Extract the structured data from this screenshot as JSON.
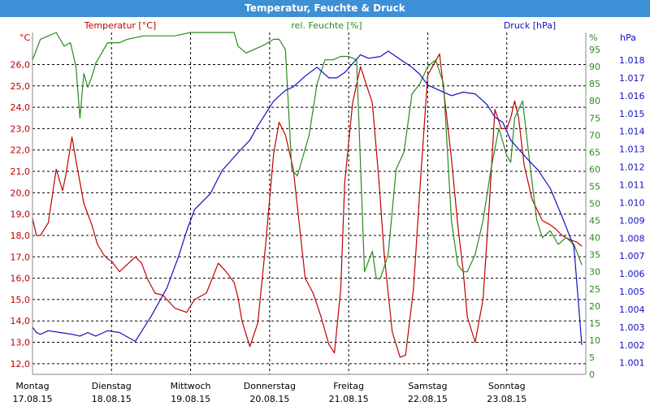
{
  "title": "Temperatur, Feuchte & Druck",
  "colors": {
    "temperature": "#c00000",
    "humidity": "#2a8a1e",
    "pressure": "#1010c0",
    "grid": "#000000",
    "title_bg": "#3d8fd6"
  },
  "chart_data": {
    "type": "line",
    "grid": true,
    "axes": {
      "left": {
        "title": "Temperatur [°C]",
        "unit": "°C",
        "ylim": [
          11.5,
          27.5
        ],
        "ticks": [
          "12,0",
          "13,0",
          "14,0",
          "15,0",
          "16,0",
          "17,0",
          "18,0",
          "19,0",
          "20,0",
          "21,0",
          "22,0",
          "23,0",
          "24,0",
          "25,0",
          "26,0"
        ]
      },
      "right1": {
        "title": "rel. Feuchte [%]",
        "unit": "%",
        "ylim": [
          0,
          100
        ],
        "ticks": [
          "0",
          "5",
          "10",
          "15",
          "20",
          "25",
          "30",
          "35",
          "40",
          "45",
          "50",
          "55",
          "60",
          "65",
          "70",
          "75",
          "80",
          "85",
          "90",
          "95"
        ]
      },
      "right2": {
        "title": "Druck [hPa]",
        "unit": "hPa",
        "ylim": [
          1000.35,
          1019.55
        ],
        "ticks": [
          "1.001",
          "1.002",
          "1.003",
          "1.004",
          "1.005",
          "1.006",
          "1.007",
          "1.008",
          "1.009",
          "1.010",
          "1.011",
          "1.012",
          "1.013",
          "1.014",
          "1.015",
          "1.016",
          "1.017",
          "1.018"
        ]
      }
    },
    "x_categories": [
      {
        "day": "Montag",
        "date": "17.08.15"
      },
      {
        "day": "Dienstag",
        "date": "18.08.15"
      },
      {
        "day": "Mittwoch",
        "date": "19.08.15"
      },
      {
        "day": "Donnerstag",
        "date": "20.08.15"
      },
      {
        "day": "Freitag",
        "date": "21.08.15"
      },
      {
        "day": "Samstag",
        "date": "22.08.15"
      },
      {
        "day": "Sonntag",
        "date": "23.08.15"
      }
    ],
    "series": [
      {
        "name": "Temperatur [°C]",
        "axis": "left",
        "x": [
          0,
          0.05,
          0.1,
          0.15,
          0.2,
          0.3,
          0.38,
          0.42,
          0.5,
          0.55,
          0.65,
          0.75,
          0.82,
          0.9,
          0.95,
          1.0,
          1.1,
          1.3,
          1.38,
          1.45,
          1.55,
          1.65,
          1.8,
          1.95,
          2.05,
          2.2,
          2.35,
          2.45,
          2.55,
          2.6,
          2.65,
          2.75,
          2.85,
          2.95,
          3.05,
          3.12,
          3.2,
          3.3,
          3.45,
          3.55,
          3.65,
          3.75,
          3.82,
          3.9,
          3.95,
          4.05,
          4.15,
          4.3,
          4.38,
          4.45,
          4.55,
          4.65,
          4.72,
          4.82,
          4.9,
          5.0,
          5.15,
          5.3,
          5.38,
          5.45,
          5.5,
          5.6,
          5.7,
          5.78,
          5.85,
          5.93,
          6.0,
          6.05,
          6.1,
          6.15,
          6.22,
          6.32,
          6.45,
          6.55,
          6.62,
          6.7,
          6.8,
          6.88,
          6.95
        ],
        "values": [
          18.8,
          18.0,
          18.0,
          18.3,
          18.6,
          21.1,
          20.1,
          20.8,
          22.6,
          21.5,
          19.5,
          18.5,
          17.6,
          17.1,
          16.9,
          16.8,
          16.3,
          17.0,
          16.7,
          16.0,
          15.3,
          15.2,
          14.6,
          14.4,
          15.0,
          15.3,
          16.7,
          16.3,
          15.8,
          15.1,
          14.0,
          12.8,
          13.9,
          17.6,
          21.8,
          23.3,
          22.7,
          21.1,
          16.0,
          15.3,
          14.2,
          12.9,
          12.5,
          15.5,
          20.5,
          24.2,
          25.9,
          24.2,
          20.7,
          17.1,
          13.5,
          12.3,
          12.4,
          15.5,
          20.1,
          25.5,
          26.5,
          21.6,
          18.5,
          16.3,
          14.2,
          13.0,
          15.0,
          19.5,
          23.9,
          23.0,
          23.0,
          23.5,
          24.3,
          23.5,
          21.3,
          19.7,
          18.7,
          18.5,
          18.3,
          18.0,
          17.8,
          17.7,
          17.5
        ]
      },
      {
        "name": "rel. Feuchte [%]",
        "axis": "right1",
        "x": [
          0,
          0.05,
          0.1,
          0.2,
          0.3,
          0.4,
          0.48,
          0.55,
          0.6,
          0.65,
          0.7,
          0.75,
          0.8,
          0.85,
          0.9,
          0.95,
          1.0,
          1.1,
          1.2,
          1.4,
          1.6,
          1.8,
          2.0,
          2.2,
          2.4,
          2.55,
          2.6,
          2.7,
          2.8,
          2.9,
          2.98,
          3.05,
          3.12,
          3.2,
          3.28,
          3.35,
          3.4,
          3.5,
          3.6,
          3.7,
          3.8,
          3.9,
          4.0,
          4.1,
          4.2,
          4.3,
          4.35,
          4.4,
          4.5,
          4.6,
          4.7,
          4.8,
          4.9,
          5.0,
          5.1,
          5.2,
          5.3,
          5.38,
          5.45,
          5.5,
          5.6,
          5.7,
          5.8,
          5.9,
          6.0,
          6.05,
          6.1,
          6.2,
          6.3,
          6.38,
          6.45,
          6.55,
          6.65,
          6.75,
          6.85,
          6.95
        ],
        "values": [
          92,
          95,
          98,
          99,
          100,
          96,
          97,
          90,
          75,
          88,
          84,
          87,
          91,
          93,
          95,
          97,
          97,
          97,
          98,
          99,
          99,
          99,
          100,
          100,
          100,
          100,
          96,
          94,
          95,
          96,
          97,
          98,
          98,
          95,
          60,
          58,
          62,
          70,
          85,
          92,
          92,
          93,
          93,
          92,
          30,
          36,
          28,
          28,
          35,
          60,
          65,
          82,
          85,
          90,
          92,
          85,
          45,
          32,
          30,
          30,
          35,
          45,
          60,
          72,
          64,
          62,
          75,
          80,
          60,
          45,
          40,
          42,
          38,
          40,
          38,
          32
        ]
      },
      {
        "name": "Druck [hPa]",
        "axis": "right2",
        "x": [
          0,
          0.05,
          0.1,
          0.2,
          0.35,
          0.5,
          0.6,
          0.7,
          0.8,
          0.9,
          0.95,
          1.1,
          1.3,
          1.5,
          1.7,
          1.85,
          1.95,
          2.05,
          2.25,
          2.4,
          2.6,
          2.75,
          2.85,
          2.95,
          3.05,
          3.2,
          3.3,
          3.45,
          3.6,
          3.75,
          3.85,
          3.95,
          4.05,
          4.15,
          4.25,
          4.4,
          4.5,
          4.6,
          4.7,
          4.8,
          4.9,
          5.0,
          5.15,
          5.3,
          5.45,
          5.6,
          5.75,
          5.85,
          5.95,
          6.05,
          6.15,
          6.25,
          6.4,
          6.55,
          6.7,
          6.85,
          6.95
        ],
        "values": [
          1003.0,
          1002.7,
          1002.6,
          1002.8,
          1002.7,
          1002.6,
          1002.5,
          1002.7,
          1002.5,
          1002.7,
          1002.8,
          1002.7,
          1002.2,
          1003.6,
          1005.2,
          1007.0,
          1008.4,
          1009.6,
          1010.5,
          1011.8,
          1012.8,
          1013.5,
          1014.3,
          1015.0,
          1015.7,
          1016.3,
          1016.5,
          1017.1,
          1017.6,
          1017.0,
          1017.0,
          1017.3,
          1017.8,
          1018.3,
          1018.1,
          1018.2,
          1018.5,
          1018.2,
          1017.9,
          1017.6,
          1017.2,
          1016.6,
          1016.3,
          1016.0,
          1016.2,
          1016.1,
          1015.5,
          1014.8,
          1014.5,
          1013.5,
          1013.0,
          1012.5,
          1011.8,
          1010.8,
          1009.2,
          1007.5,
          1002.0
        ]
      }
    ]
  }
}
